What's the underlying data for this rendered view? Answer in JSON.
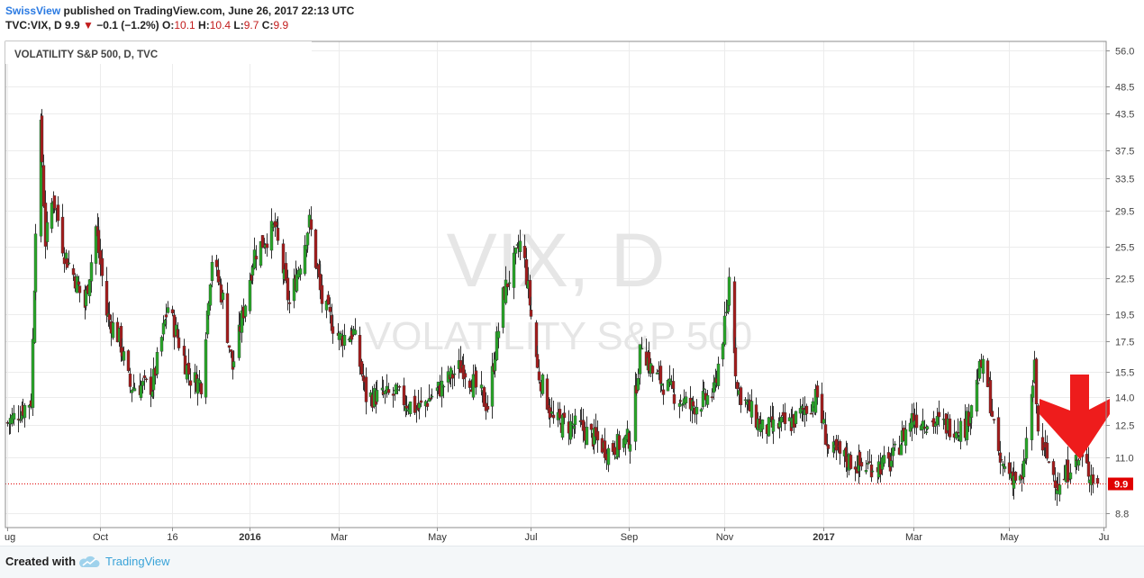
{
  "header": {
    "publisher": "SwissView",
    "published_text": "published on TradingView.com, June 26, 2017 22:13 UTC",
    "symbol": "TVC:VIX, D",
    "last": "9.9",
    "change": "−0.1 (−1.2%)",
    "o_label": "O:",
    "o_value": "10.1",
    "h_label": "H:",
    "h_value": "10.4",
    "l_label": "L:",
    "l_value": "9.7",
    "c_label": "C:",
    "c_value": "9.9"
  },
  "chart_title": "VOLATILITY S&P 500, D, TVC",
  "watermark": {
    "line1": "VIX, D",
    "line2": "VOLATILITY S&P 500"
  },
  "footer": {
    "created_with": "Created with",
    "brand": "TradingView"
  },
  "colors": {
    "up": "#29a829",
    "down": "#a51c1c",
    "last_price": "#e00000",
    "arrow": "#ee1c1c"
  },
  "chart_data": {
    "type": "candlestick",
    "title": "VOLATILITY S&P 500, D, TVC",
    "x_tick_labels": [
      "ug",
      "Oct",
      "16",
      "2016",
      "Mar",
      "May",
      "Jul",
      "Sep",
      "Nov",
      "2017",
      "Mar",
      "May",
      "Ju"
    ],
    "y_tick_labels": [
      "56.0",
      "48.5",
      "43.5",
      "37.5",
      "33.5",
      "29.5",
      "25.5",
      "22.5",
      "19.5",
      "17.5",
      "15.5",
      "14.0",
      "12.5",
      "11.0",
      "8.8"
    ],
    "y_scale": "log",
    "ylim": [
      8.3,
      58
    ],
    "last_price": 9.9,
    "last_price_label": "9.9",
    "grid": true,
    "annotation": "red down arrow near June 2017 lows",
    "close_path": [
      [
        "2015-08-03",
        12.6
      ],
      [
        "2015-08-18",
        13.8
      ],
      [
        "2015-08-21",
        28.0
      ],
      [
        "2015-08-24",
        40.7
      ],
      [
        "2015-08-25",
        36.0
      ],
      [
        "2015-08-27",
        26.1
      ],
      [
        "2015-09-01",
        31.4
      ],
      [
        "2015-09-08",
        24.9
      ],
      [
        "2015-09-15",
        22.5
      ],
      [
        "2015-09-21",
        20.1
      ],
      [
        "2015-09-28",
        27.6
      ],
      [
        "2015-10-05",
        19.5
      ],
      [
        "2015-10-13",
        17.7
      ],
      [
        "2015-10-20",
        14.6
      ],
      [
        "2015-11-03",
        14.6
      ],
      [
        "2015-11-13",
        20.1
      ],
      [
        "2015-11-27",
        15.1
      ],
      [
        "2015-12-04",
        14.8
      ],
      [
        "2015-12-11",
        24.4
      ],
      [
        "2015-12-18",
        20.7
      ],
      [
        "2015-12-24",
        15.7
      ],
      [
        "2016-01-07",
        24.9
      ],
      [
        "2016-01-20",
        27.6
      ],
      [
        "2016-01-29",
        20.2
      ],
      [
        "2016-02-11",
        28.1
      ],
      [
        "2016-02-19",
        20.5
      ],
      [
        "2016-03-01",
        17.7
      ],
      [
        "2016-03-10",
        18.1
      ],
      [
        "2016-03-18",
        14.0
      ],
      [
        "2016-04-06",
        14.1
      ],
      [
        "2016-04-20",
        13.3
      ],
      [
        "2016-05-06",
        14.7
      ],
      [
        "2016-05-18",
        15.9
      ],
      [
        "2016-06-03",
        13.5
      ],
      [
        "2016-06-13",
        20.9
      ],
      [
        "2016-06-24",
        25.8
      ],
      [
        "2016-06-27",
        23.9
      ],
      [
        "2016-07-05",
        15.6
      ],
      [
        "2016-07-15",
        12.7
      ],
      [
        "2016-08-01",
        12.4
      ],
      [
        "2016-08-19",
        11.3
      ],
      [
        "2016-09-02",
        11.9
      ],
      [
        "2016-09-09",
        17.5
      ],
      [
        "2016-09-16",
        15.4
      ],
      [
        "2016-09-26",
        14.5
      ],
      [
        "2016-10-10",
        13.4
      ],
      [
        "2016-10-25",
        14.2
      ],
      [
        "2016-11-02",
        19.3
      ],
      [
        "2016-11-04",
        22.5
      ],
      [
        "2016-11-09",
        14.4
      ],
      [
        "2016-11-25",
        12.3
      ],
      [
        "2016-12-13",
        12.6
      ],
      [
        "2016-12-30",
        14.0
      ],
      [
        "2017-01-06",
        11.3
      ],
      [
        "2017-01-27",
        10.6
      ],
      [
        "2017-02-14",
        10.7
      ],
      [
        "2017-02-28",
        12.9
      ],
      [
        "2017-03-21",
        12.5
      ],
      [
        "2017-04-03",
        12.4
      ],
      [
        "2017-04-13",
        15.9
      ],
      [
        "2017-04-18",
        14.4
      ],
      [
        "2017-04-24",
        10.8
      ],
      [
        "2017-05-09",
        9.9
      ],
      [
        "2017-05-17",
        15.6
      ],
      [
        "2017-05-19",
        12.0
      ],
      [
        "2017-06-02",
        9.7
      ],
      [
        "2017-06-09",
        10.7
      ],
      [
        "2017-06-15",
        10.9
      ],
      [
        "2017-06-26",
        9.9
      ]
    ]
  }
}
